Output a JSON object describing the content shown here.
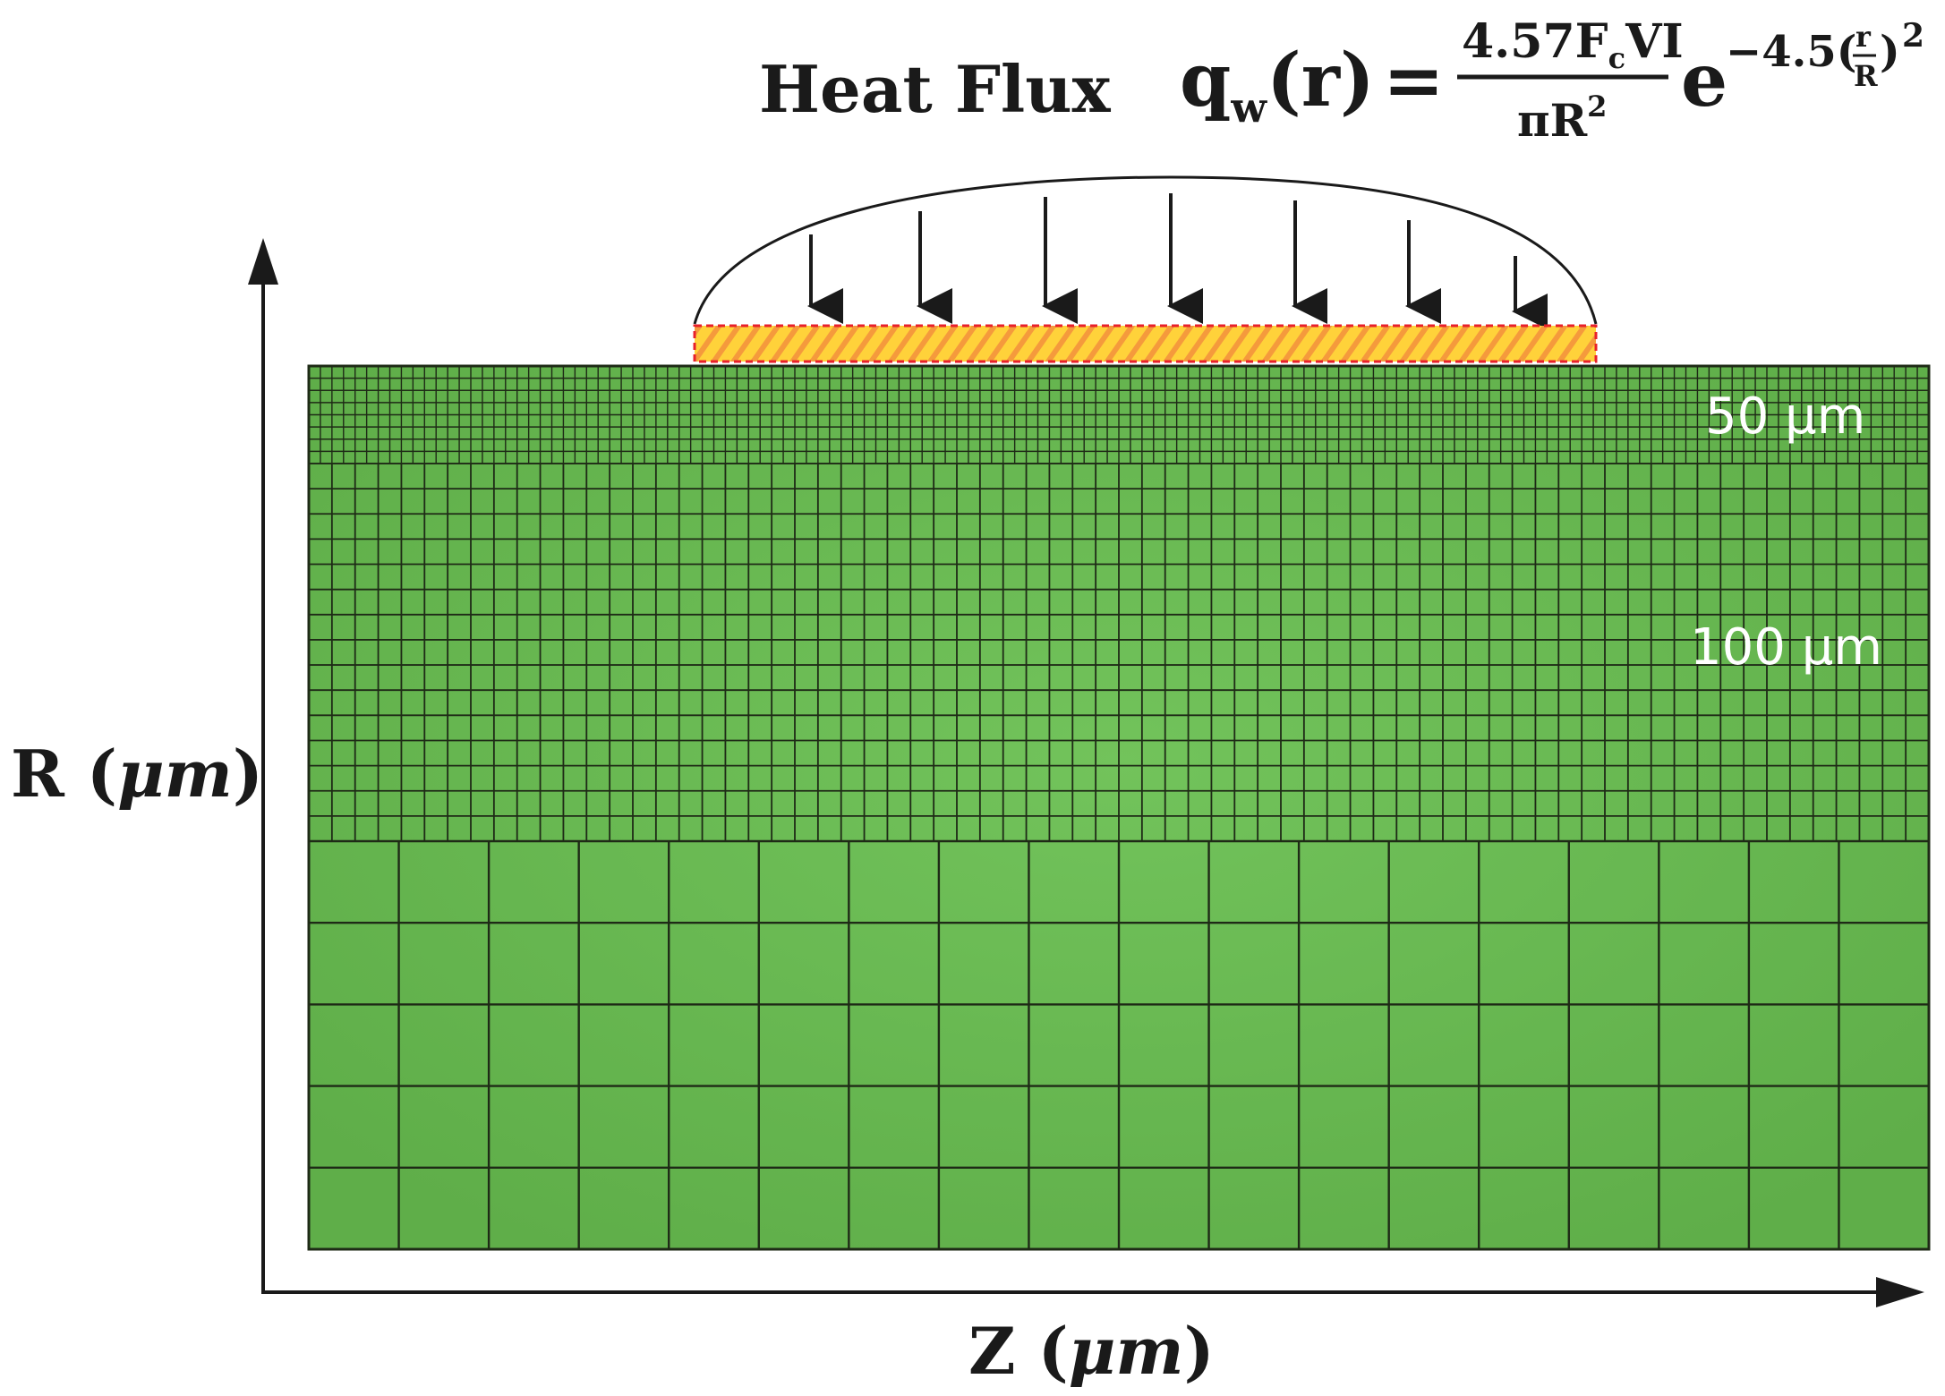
{
  "heat_flux": {
    "title": "Heat Flux",
    "formula": {
      "lhs_q": "q",
      "lhs_sub": "w",
      "lhs_arg": "(r)",
      "equals": "=",
      "numerator": "4.57F",
      "numerator_sub": "c",
      "numerator_tail": "VI",
      "denominator": "πR",
      "denominator_sup": "2",
      "exp_base": "e",
      "exp_coeff": "−4.5(",
      "exp_frac_num": "r",
      "exp_frac_den": "R",
      "exp_close": ")",
      "exp_power": "2"
    },
    "arrow_count": 7,
    "source_colors": {
      "stripe_a": "#ffd23a",
      "stripe_b": "#f08a3a",
      "border": "#e8202a"
    }
  },
  "mesh": {
    "fill_color": "#6cbd55",
    "line_color": "#1e2a16",
    "zones": [
      {
        "label": "50 μm"
      },
      {
        "label": "100 μm"
      },
      {
        "label": ""
      }
    ]
  },
  "axes": {
    "y_label_main": "R (",
    "y_label_unit": "μm",
    "y_label_close": ")",
    "x_label_main": "Z (",
    "x_label_unit": "μm",
    "x_label_close": ")"
  }
}
